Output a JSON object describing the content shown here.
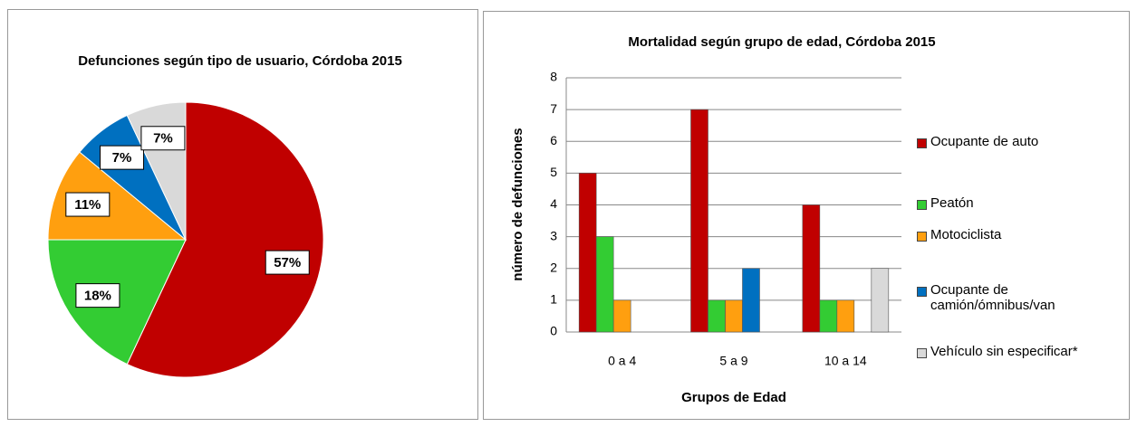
{
  "chart_data": [
    {
      "type": "pie",
      "title": "Defunciones según tipo de usuario, Córdoba 2015",
      "values": [
        57,
        18,
        11,
        7,
        7
      ],
      "value_labels": [
        "57%",
        "18%",
        "11%",
        "7%",
        "7%"
      ],
      "colors": [
        "#c00000",
        "#33cc33",
        "#ff9f0f",
        "#0070c0",
        "#d9d9d9"
      ]
    },
    {
      "type": "bar",
      "title": "Mortalidad según grupo de edad, Córdoba 2015",
      "x_label": "Grupos de Edad",
      "y_label": "número de defunciones",
      "categories": [
        "0 a 4",
        "5 a 9",
        "10 a 14"
      ],
      "series": [
        {
          "name": "Ocupante de auto",
          "color": "#c00000",
          "values": [
            5,
            7,
            4
          ]
        },
        {
          "name": "Peatón",
          "color": "#33cc33",
          "values": [
            3,
            1,
            1
          ]
        },
        {
          "name": "Motociclista",
          "color": "#ff9f0f",
          "values": [
            1,
            1,
            1
          ]
        },
        {
          "name": "Ocupante de camión/ómnibus/van",
          "color": "#0070c0",
          "values": [
            0,
            2,
            0
          ]
        },
        {
          "name": "Vehículo sin especificar*",
          "color": "#d9d9d9",
          "values": [
            0,
            0,
            2
          ]
        }
      ],
      "ylim": [
        0,
        8
      ],
      "yticks": [
        0,
        1,
        2,
        3,
        4,
        5,
        6,
        7,
        8
      ],
      "grid": true,
      "legend": "right"
    }
  ]
}
